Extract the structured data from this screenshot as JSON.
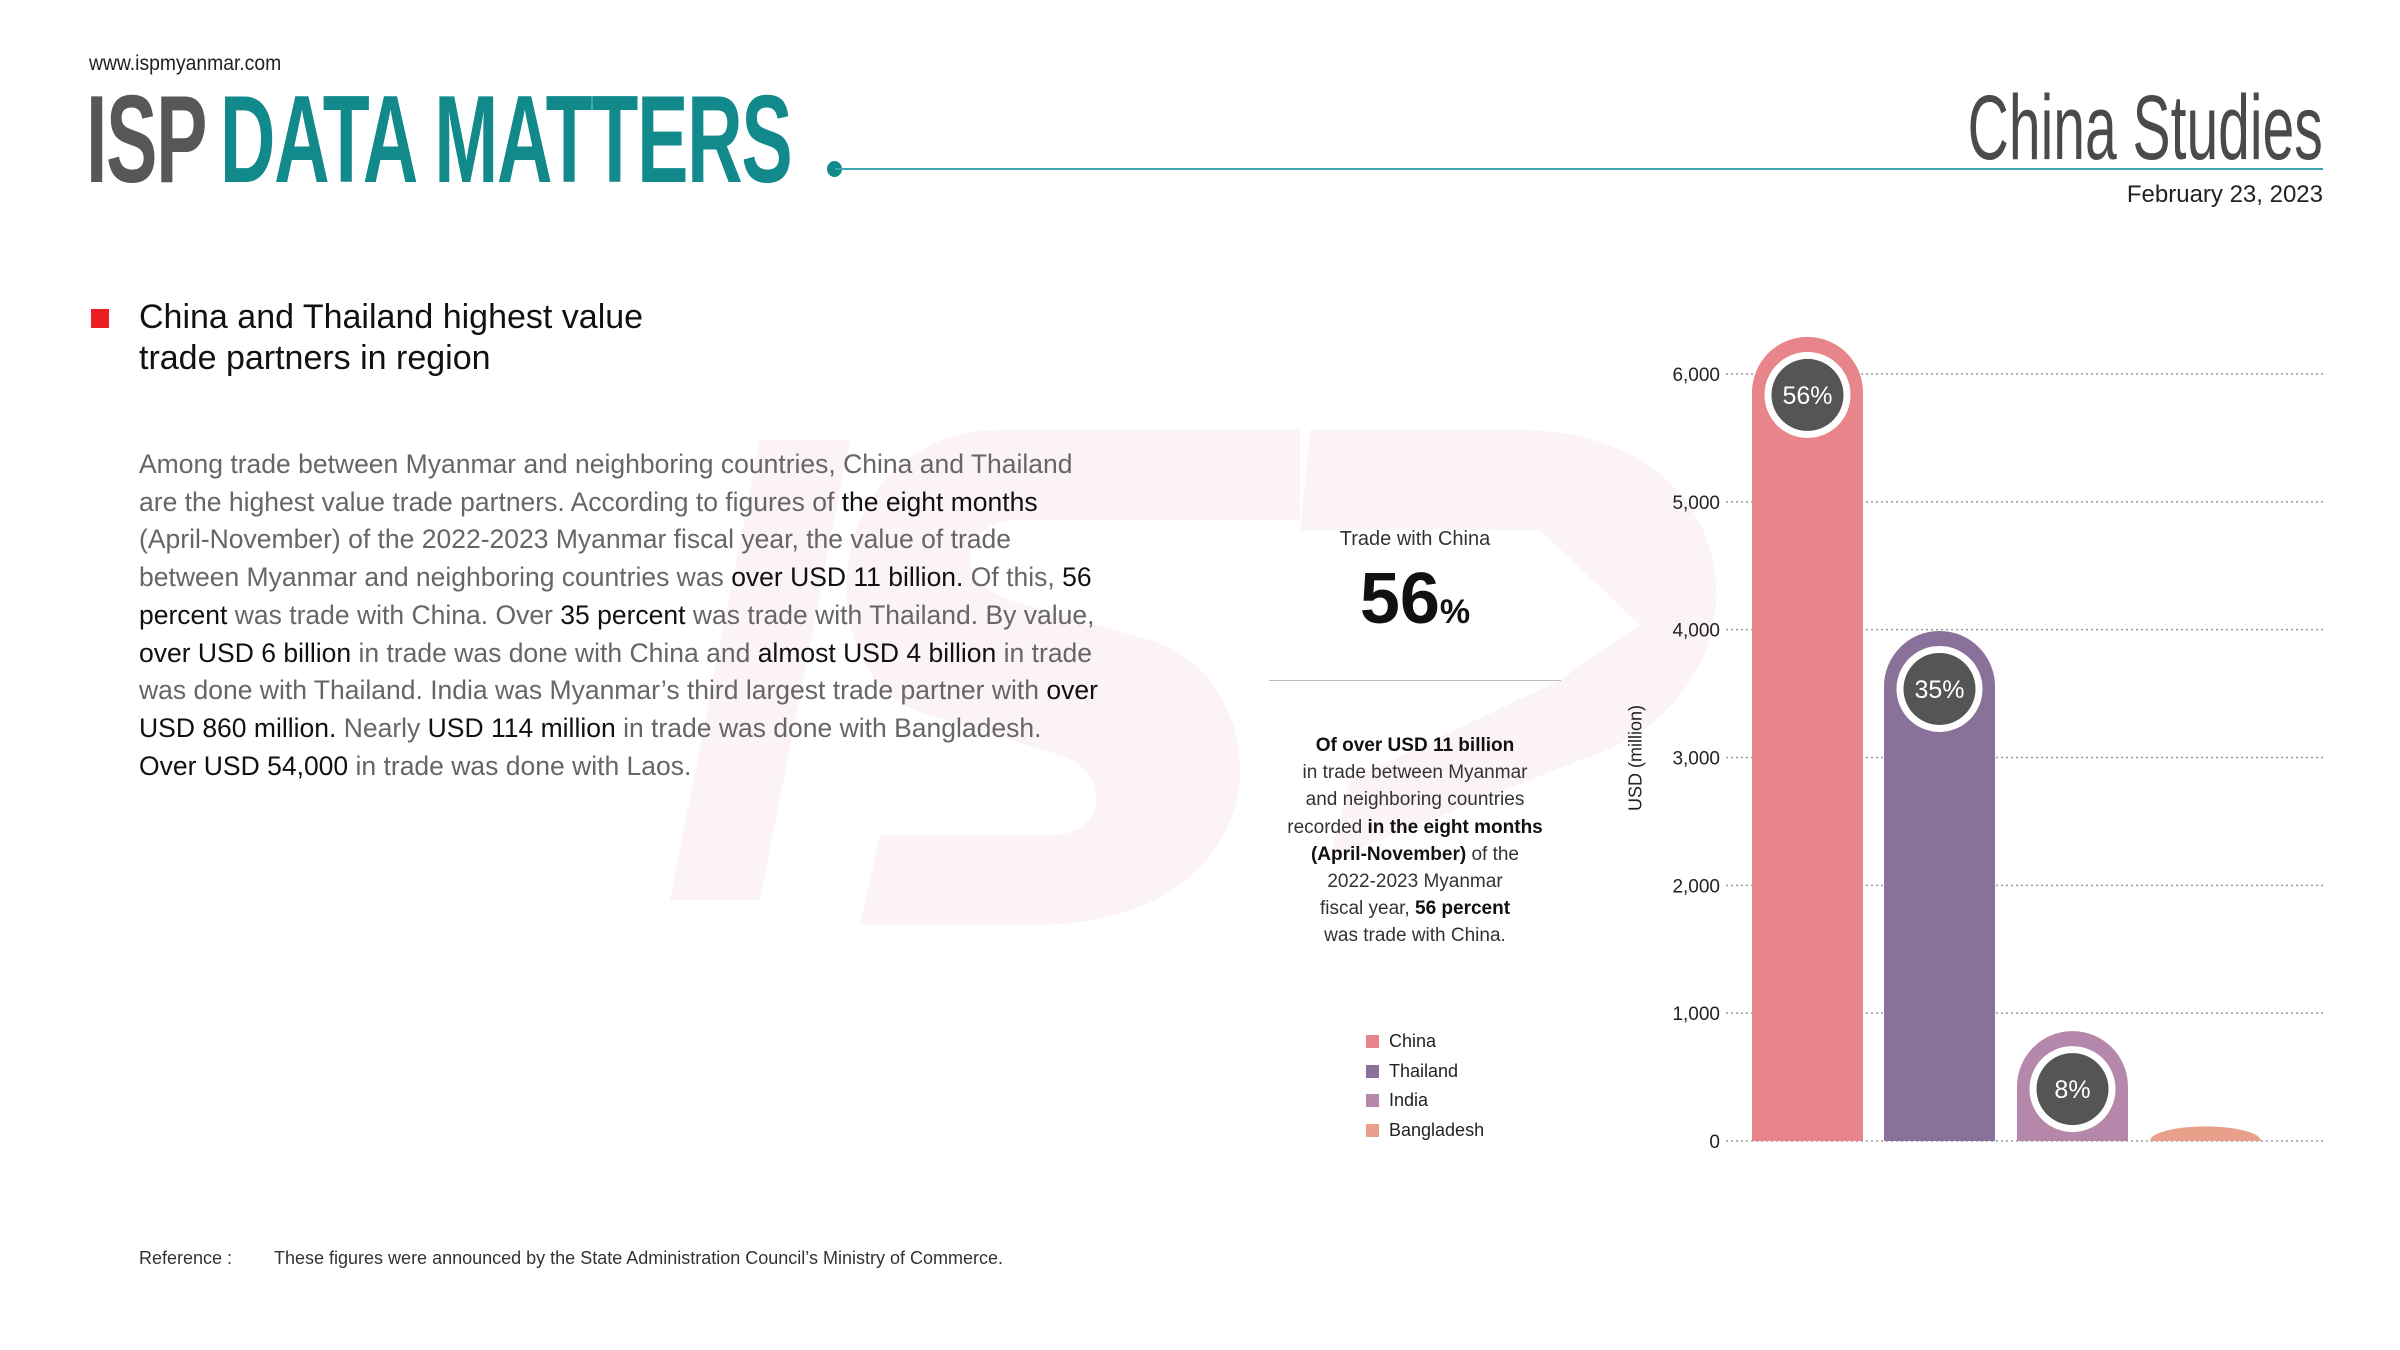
{
  "header": {
    "url": "www.ispmyanmar.com",
    "logo_isp": "ISP",
    "logo_title": "DATA MATTERS",
    "series": "China Studies",
    "date": "February 23, 2023"
  },
  "article": {
    "heading_line1": "China and Thailand highest value",
    "heading_line2": "trade partners in region",
    "body": [
      {
        "t": "Among trade between Myanmar and neighboring countries, China and Thailand are the highest value trade partners. According to figures of ",
        "b": false
      },
      {
        "t": "the eight months",
        "b": true
      },
      {
        "t": " (April-November) of the 2022-2023 Myanmar fiscal year, the value of trade between Myanmar and neighboring countries was ",
        "b": false
      },
      {
        "t": "over USD 11 billion.",
        "b": true
      },
      {
        "t": " Of this, ",
        "b": false
      },
      {
        "t": "56 percent",
        "b": true
      },
      {
        "t": " was trade with China. Over ",
        "b": false
      },
      {
        "t": "35 percent",
        "b": true
      },
      {
        "t": " was trade with Thailand. By value, ",
        "b": false
      },
      {
        "t": "over USD 6 billion",
        "b": true
      },
      {
        "t": " in trade was done with China and ",
        "b": false
      },
      {
        "t": "almost USD 4 billion",
        "b": true
      },
      {
        "t": " in trade was done with Thailand. India was Myanmar’s third largest trade partner with ",
        "b": false
      },
      {
        "t": "over USD 860 million.",
        "b": true
      },
      {
        "t": " Nearly ",
        "b": false
      },
      {
        "t": "USD 114 million",
        "b": true
      },
      {
        "t": " in trade was done with Bangladesh.",
        "b": false
      },
      {
        "t": "\n",
        "b": false
      },
      {
        "t": "Over USD 54,000",
        "b": true
      },
      {
        "t": " in trade was done with Laos.",
        "b": false
      }
    ]
  },
  "panel": {
    "caption": "Trade with China",
    "big_value": "56",
    "big_unit": "%",
    "text": [
      {
        "t": "Of over USD 11 billion",
        "b": true
      },
      {
        "t": "\nin trade between Myanmar\nand neighboring countries\nrecorded ",
        "b": false
      },
      {
        "t": "in the eight months\n(April-November)",
        "b": true
      },
      {
        "t": " of the\n2022-2023 Myanmar\nfiscal year, ",
        "b": false
      },
      {
        "t": "56 percent",
        "b": true
      },
      {
        "t": "\nwas trade with China.",
        "b": false
      }
    ]
  },
  "reference": {
    "label": "Reference :",
    "text": "These figures were announced by the State Administration Council’s Ministry of Commerce."
  },
  "chart_data": {
    "type": "bar",
    "title": "",
    "xlabel": "",
    "ylabel": "USD (million)",
    "ylim": [
      0,
      6000
    ],
    "yticks": [
      0,
      1000,
      2000,
      3000,
      4000,
      5000,
      6000
    ],
    "ytick_labels": [
      "0",
      "1,000",
      "2,000",
      "3,000",
      "4,000",
      "5,000",
      "6,000"
    ],
    "grid": true,
    "legend_position": "left",
    "categories": [
      "China",
      "Thailand",
      "India",
      "Bangladesh"
    ],
    "values": [
      6290,
      3990,
      860,
      114
    ],
    "share_labels": [
      "56%",
      "35%",
      "8%",
      ""
    ],
    "colors": [
      "#e8858a",
      "#8a7199",
      "#b588ab",
      "#e8a08a"
    ],
    "badge_color": "#555555"
  }
}
